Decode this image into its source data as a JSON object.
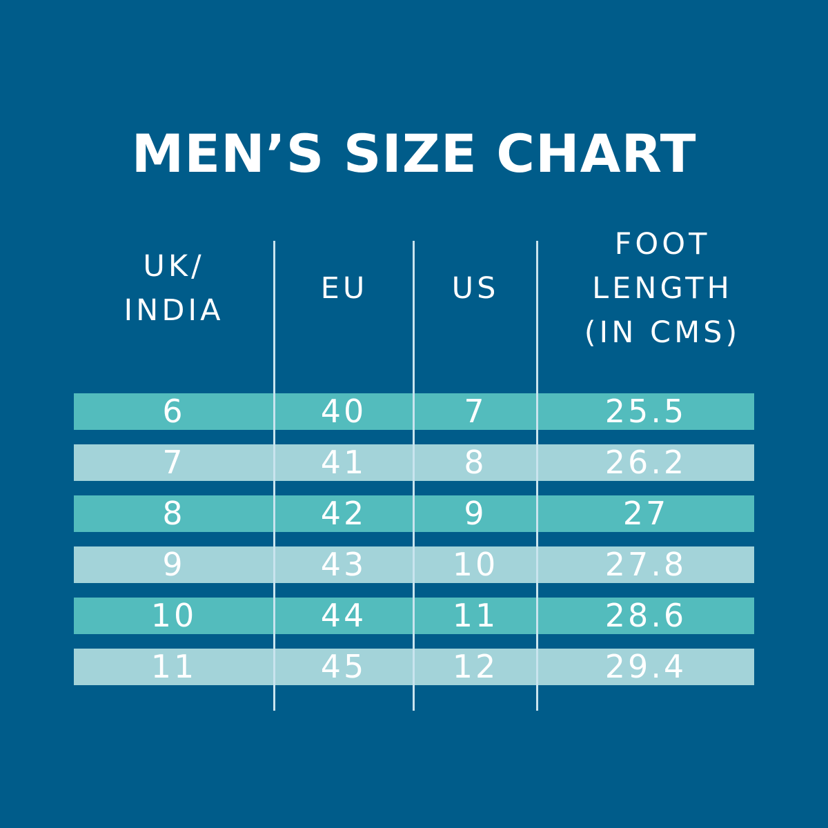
{
  "chart_data": {
    "type": "table",
    "title": "MEN’S SIZE CHART",
    "columns": [
      "UK/\nINDIA",
      "EU",
      "US",
      "FOOT\nLENGTH\n(IN CMS)"
    ],
    "rows": [
      [
        "6",
        "40",
        "7",
        "25.5"
      ],
      [
        "7",
        "41",
        "8",
        "26.2"
      ],
      [
        "8",
        "42",
        "9",
        "27"
      ],
      [
        "9",
        "43",
        "10",
        "27.8"
      ],
      [
        "10",
        "44",
        "11",
        "28.6"
      ],
      [
        "11",
        "45",
        "12",
        "29.4"
      ]
    ]
  },
  "colors": {
    "background": "#005c8a",
    "row_dark": "#53bcbd",
    "row_light": "#a3d3d9",
    "divider": "#c9e4ee",
    "text": "#ffffff"
  }
}
